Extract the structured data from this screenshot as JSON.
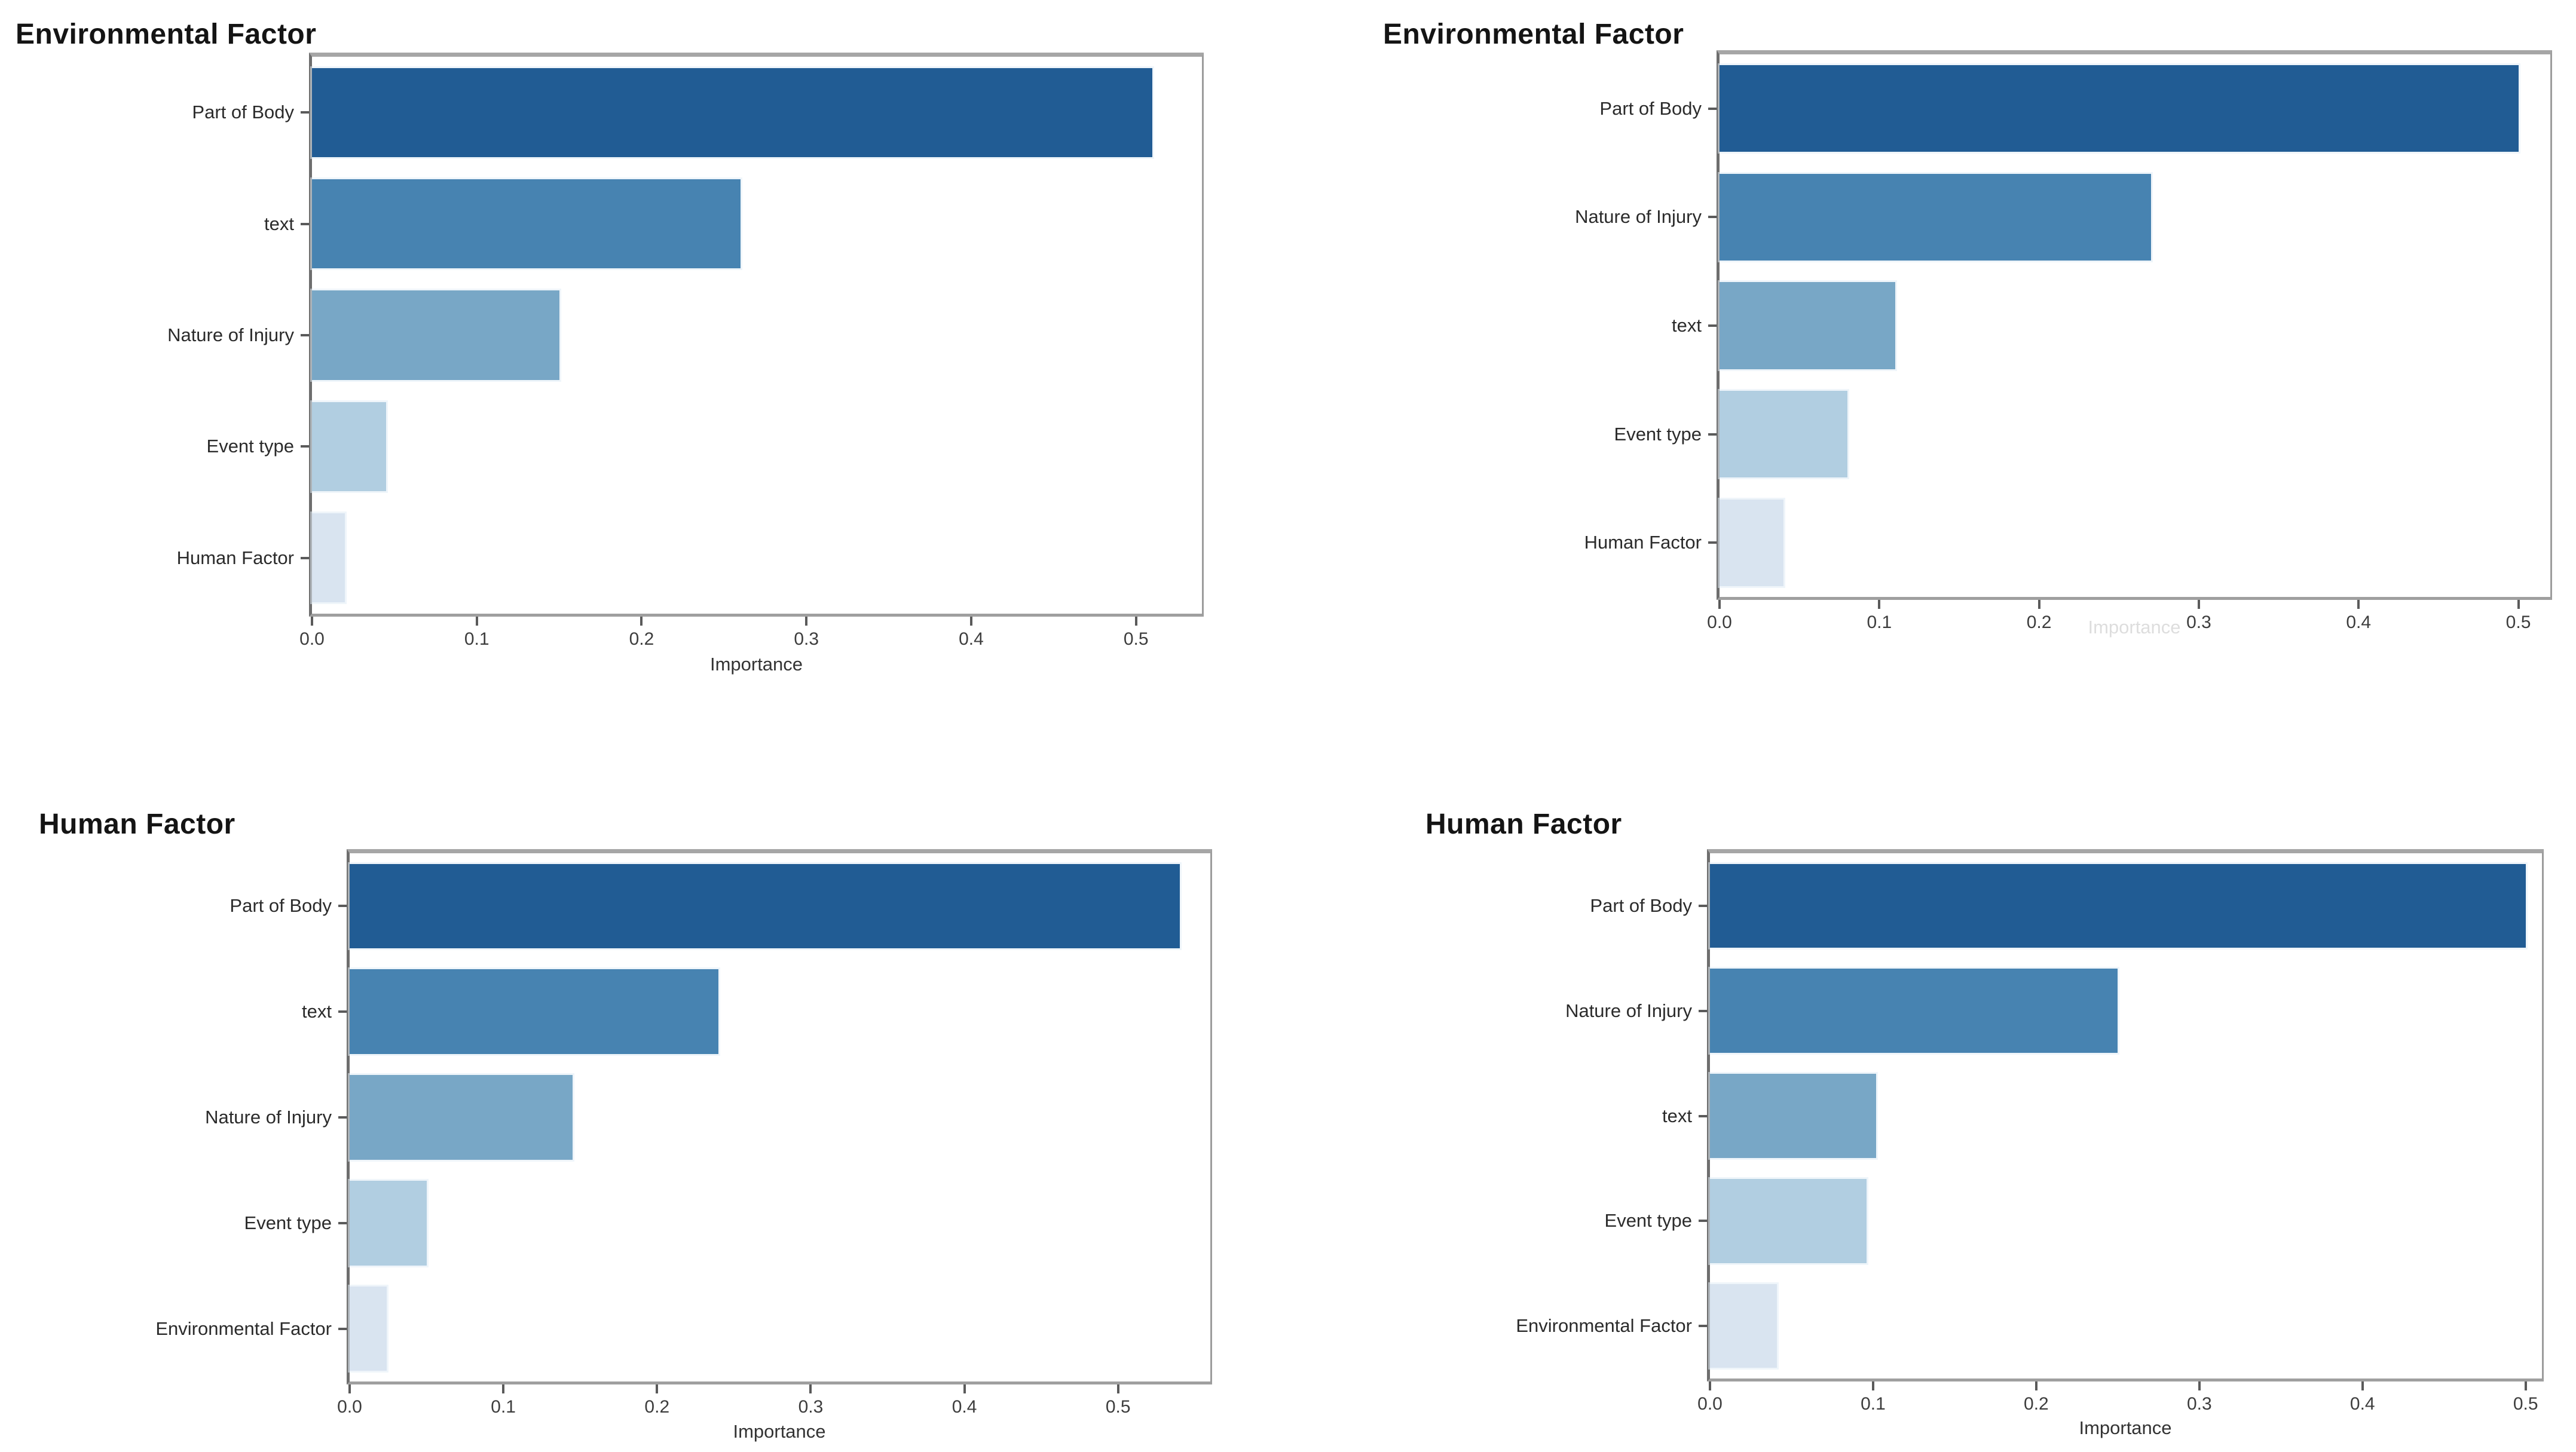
{
  "colors": {
    "bar_palette": [
      "#215c94",
      "#4783b1",
      "#78a7c6",
      "#b1cee1",
      "#d9e4f0"
    ],
    "spine": "#8c8c8c",
    "title_text": "#141414",
    "label_text": "#2b2b2b",
    "tick_text": "#3d3d3d"
  },
  "chart_data": [
    {
      "type": "bar",
      "orientation": "horizontal",
      "position": "top-left",
      "title": "Environmental Factor",
      "xlabel": "Importance",
      "xlabel_faint": false,
      "xlim": [
        0,
        0.54
      ],
      "grid": false,
      "legend": "none",
      "xticks": [
        "0.0",
        "0.1",
        "0.2",
        "0.3",
        "0.4",
        "0.5"
      ],
      "categories": [
        "Part of Body",
        "text",
        "Nature of Injury",
        "Event type",
        "Human Factor"
      ],
      "values": [
        0.51,
        0.26,
        0.15,
        0.045,
        0.02
      ]
    },
    {
      "type": "bar",
      "orientation": "horizontal",
      "position": "top-right",
      "title": "Environmental Factor",
      "xlabel": "Importance",
      "xlabel_faint": true,
      "xlim": [
        0,
        0.52
      ],
      "grid": false,
      "legend": "none",
      "xticks": [
        "0.0",
        "0.1",
        "0.2",
        "0.3",
        "0.4",
        "0.5"
      ],
      "categories": [
        "Part of Body",
        "Nature of Injury",
        "text",
        "Event type",
        "Human Factor"
      ],
      "values": [
        0.5,
        0.27,
        0.11,
        0.08,
        0.04
      ]
    },
    {
      "type": "bar",
      "orientation": "horizontal",
      "position": "bottom-left",
      "title": "Human Factor",
      "xlabel": "Importance",
      "xlabel_faint": false,
      "xlim": [
        0,
        0.56
      ],
      "grid": false,
      "legend": "none",
      "xticks": [
        "0.0",
        "0.1",
        "0.2",
        "0.3",
        "0.4",
        "0.5"
      ],
      "categories": [
        "Part of Body",
        "text",
        "Nature of Injury",
        "Event type",
        "Environmental Factor"
      ],
      "values": [
        0.54,
        0.24,
        0.145,
        0.05,
        0.024
      ]
    },
    {
      "type": "bar",
      "orientation": "horizontal",
      "position": "bottom-right",
      "title": "Human Factor",
      "xlabel": "Importance",
      "xlabel_faint": false,
      "xlim": [
        0,
        0.51
      ],
      "grid": false,
      "legend": "none",
      "xticks": [
        "0.0",
        "0.1",
        "0.2",
        "0.3",
        "0.4",
        "0.5"
      ],
      "categories": [
        "Part of Body",
        "Nature of Injury",
        "text",
        "Event type",
        "Environmental Factor"
      ],
      "values": [
        0.5,
        0.25,
        0.102,
        0.096,
        0.041
      ]
    }
  ]
}
